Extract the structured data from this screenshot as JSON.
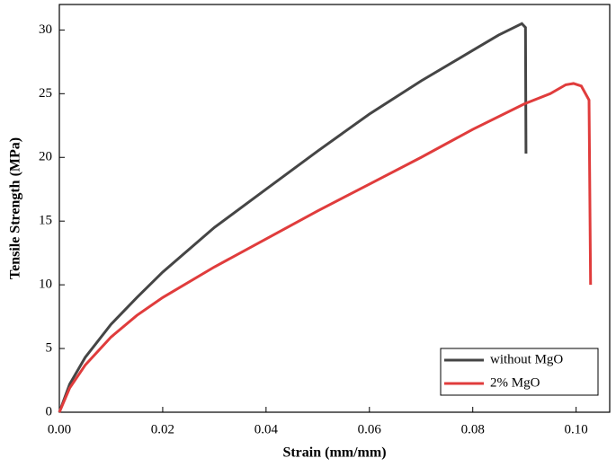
{
  "chart_data": {
    "type": "line",
    "x_label": "Strain (mm/mm)",
    "y_label": "Tensile Strength (MPa)",
    "xlim": [
      0,
      0.1065
    ],
    "ylim": [
      0,
      32
    ],
    "xticks": [
      {
        "value": 0,
        "label": "0.00"
      },
      {
        "value": 0.02,
        "label": "0.02"
      },
      {
        "value": 0.04,
        "label": "0.04"
      },
      {
        "value": 0.06,
        "label": "0.06"
      },
      {
        "value": 0.08,
        "label": "0.08"
      },
      {
        "value": 0.1,
        "label": "0.10"
      }
    ],
    "yticks": [
      0,
      5,
      10,
      15,
      20,
      25,
      30
    ],
    "legend": "lower right",
    "series": [
      {
        "name": "without MgO",
        "color": "#454545",
        "x": [
          0,
          0.002,
          0.005,
          0.01,
          0.015,
          0.02,
          0.03,
          0.04,
          0.05,
          0.06,
          0.07,
          0.08,
          0.085,
          0.088,
          0.0895,
          0.0902,
          0.0903
        ],
        "values": [
          0,
          2.2,
          4.3,
          6.9,
          9.0,
          11.0,
          14.5,
          17.5,
          20.5,
          23.4,
          26.0,
          28.4,
          29.6,
          30.2,
          30.5,
          30.2,
          20.3
        ]
      },
      {
        "name": "2% MgO",
        "color": "#e03c3c",
        "x": [
          0,
          0.002,
          0.005,
          0.01,
          0.015,
          0.02,
          0.03,
          0.04,
          0.05,
          0.06,
          0.07,
          0.08,
          0.09,
          0.095,
          0.098,
          0.0995,
          0.101,
          0.1025,
          0.1028
        ],
        "values": [
          0,
          1.9,
          3.7,
          5.9,
          7.6,
          9.0,
          11.4,
          13.6,
          15.8,
          17.9,
          20.0,
          22.2,
          24.2,
          25.0,
          25.7,
          25.8,
          25.6,
          24.5,
          10.0
        ]
      }
    ]
  }
}
